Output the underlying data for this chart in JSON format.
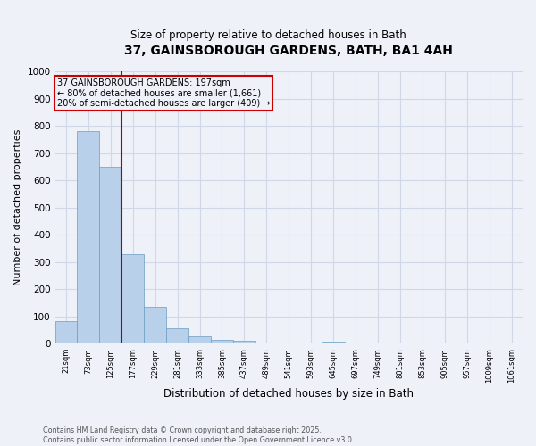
{
  "title_line1": "37, GAINSBOROUGH GARDENS, BATH, BA1 4AH",
  "title_line2": "Size of property relative to detached houses in Bath",
  "xlabel": "Distribution of detached houses by size in Bath",
  "ylabel": "Number of detached properties",
  "annotation_line1": "37 GAINSBOROUGH GARDENS: 197sqm",
  "annotation_line2": "← 80% of detached houses are smaller (1,661)",
  "annotation_line3": "20% of semi-detached houses are larger (409) →",
  "categories": [
    "21sqm",
    "73sqm",
    "125sqm",
    "177sqm",
    "229sqm",
    "281sqm",
    "333sqm",
    "385sqm",
    "437sqm",
    "489sqm",
    "541sqm",
    "593sqm",
    "645sqm",
    "697sqm",
    "749sqm",
    "801sqm",
    "853sqm",
    "905sqm",
    "957sqm",
    "1009sqm",
    "1061sqm"
  ],
  "bar_values": [
    83,
    780,
    650,
    330,
    135,
    57,
    25,
    14,
    10,
    4,
    2,
    0,
    7,
    0,
    0,
    0,
    0,
    0,
    0,
    0,
    0
  ],
  "property_bar_index": 3,
  "bar_color": "#b8d0ea",
  "bar_edge_color": "#6a9cc0",
  "vertical_line_color": "#aa0000",
  "annotation_box_color": "#cc0000",
  "ylim": [
    0,
    1000
  ],
  "yticks": [
    0,
    100,
    200,
    300,
    400,
    500,
    600,
    700,
    800,
    900,
    1000
  ],
  "bg_color": "#eef1f8",
  "grid_color": "#d0d8e8",
  "footer_line1": "Contains HM Land Registry data © Crown copyright and database right 2025.",
  "footer_line2": "Contains public sector information licensed under the Open Government Licence v3.0."
}
